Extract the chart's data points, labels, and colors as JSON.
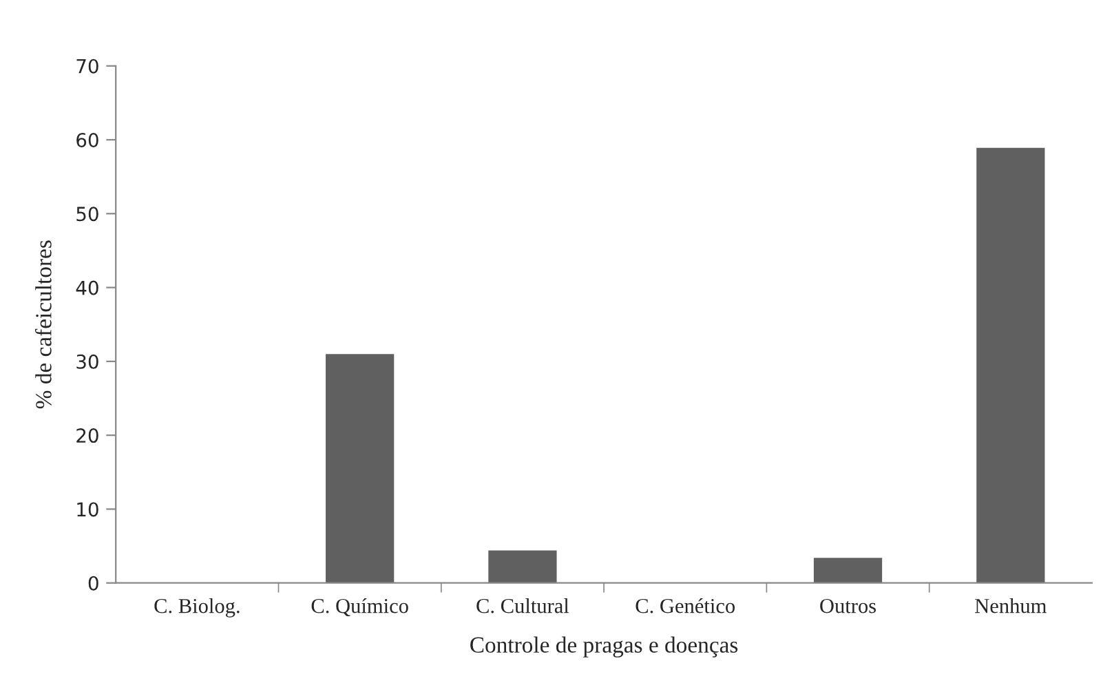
{
  "chart_data": {
    "type": "bar",
    "categories": [
      "C. Biolog.",
      "C. Químico",
      "C. Cultural",
      "C. Genético",
      "Outros",
      "Nenhum"
    ],
    "values": [
      0,
      31,
      4.4,
      0,
      3.4,
      58.9
    ],
    "color": "#606060",
    "xlabel": "Controle de pragas e doenças",
    "ylabel": "% de cafeicultores",
    "ylim": [
      0,
      70
    ],
    "yticks": [
      0,
      10,
      20,
      30,
      40,
      50,
      60,
      70
    ],
    "grid": false,
    "legend": false
  }
}
